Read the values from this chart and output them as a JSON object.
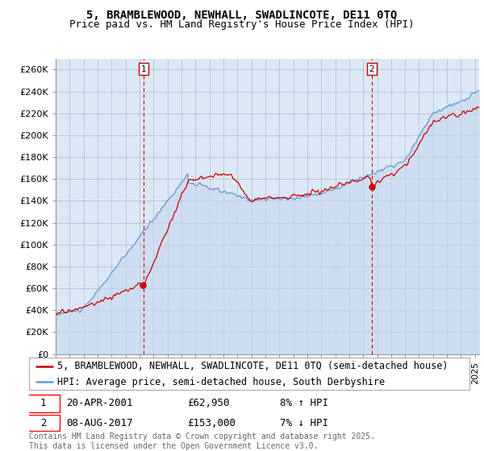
{
  "title_line1": "5, BRAMBLEWOOD, NEWHALL, SWADLINCOTE, DE11 0TQ",
  "title_line2": "Price paid vs. HM Land Registry's House Price Index (HPI)",
  "ylabel_ticks": [
    "£0",
    "£20K",
    "£40K",
    "£60K",
    "£80K",
    "£100K",
    "£120K",
    "£140K",
    "£160K",
    "£180K",
    "£200K",
    "£220K",
    "£240K",
    "£260K"
  ],
  "ytick_values": [
    0,
    20000,
    40000,
    60000,
    80000,
    100000,
    120000,
    140000,
    160000,
    180000,
    200000,
    220000,
    240000,
    260000
  ],
  "ylim": [
    0,
    270000
  ],
  "xlim_start": 1995.0,
  "xlim_end": 2025.3,
  "chart_bg_color": "#dce9f5",
  "background_color": "#ffffff",
  "grid_color": "#aabbcc",
  "property_color": "#cc0000",
  "hpi_color": "#6699cc",
  "hpi_fill_color": "#c5d8ed",
  "legend_label_property": "5, BRAMBLEWOOD, NEWHALL, SWADLINCOTE, DE11 0TQ (semi-detached house)",
  "legend_label_hpi": "HPI: Average price, semi-detached house, South Derbyshire",
  "sale1_year": 2001.3,
  "sale1_price": 62950,
  "sale1_label": "1",
  "sale1_text": "20-APR-2001",
  "sale1_price_text": "£62,950",
  "sale1_hpi_text": "8% ↑ HPI",
  "sale2_year": 2017.6,
  "sale2_price": 153000,
  "sale2_label": "2",
  "sale2_text": "08-AUG-2017",
  "sale2_price_text": "£153,000",
  "sale2_hpi_text": "7% ↓ HPI",
  "footer_text": "Contains HM Land Registry data © Crown copyright and database right 2025.\nThis data is licensed under the Open Government Licence v3.0.",
  "title_fontsize": 10,
  "subtitle_fontsize": 9,
  "tick_fontsize": 8,
  "legend_fontsize": 8.5,
  "footer_fontsize": 7
}
